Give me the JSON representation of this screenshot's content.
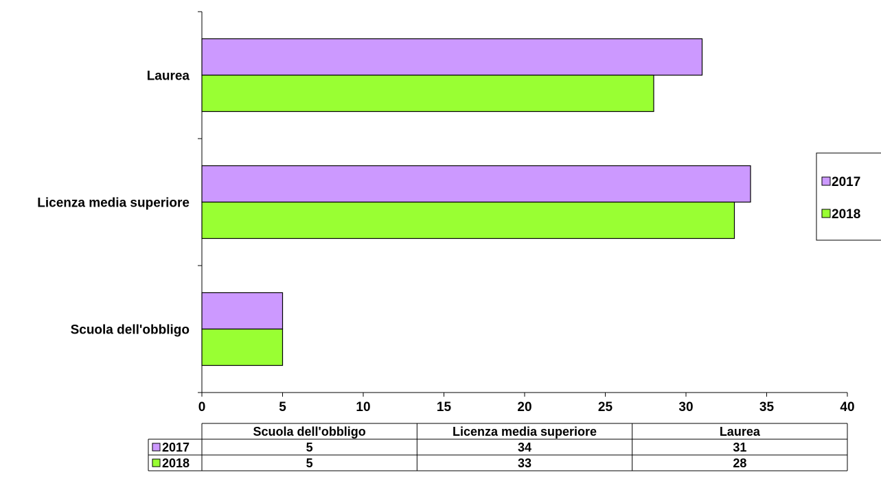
{
  "chart_data": {
    "type": "bar",
    "orientation": "horizontal",
    "categories": [
      "Scuola dell'obbligo",
      "Licenza media superiore",
      "Laurea"
    ],
    "series": [
      {
        "name": "2017",
        "values": [
          5,
          34,
          31
        ],
        "color": "#cc99ff"
      },
      {
        "name": "2018",
        "values": [
          5,
          33,
          28
        ],
        "color": "#99ff33"
      }
    ],
    "xlim": [
      0,
      40
    ],
    "xticks": [
      0,
      5,
      10,
      15,
      20,
      25,
      30,
      35,
      40
    ],
    "grid": false,
    "legend_position": "right",
    "data_table": true
  }
}
